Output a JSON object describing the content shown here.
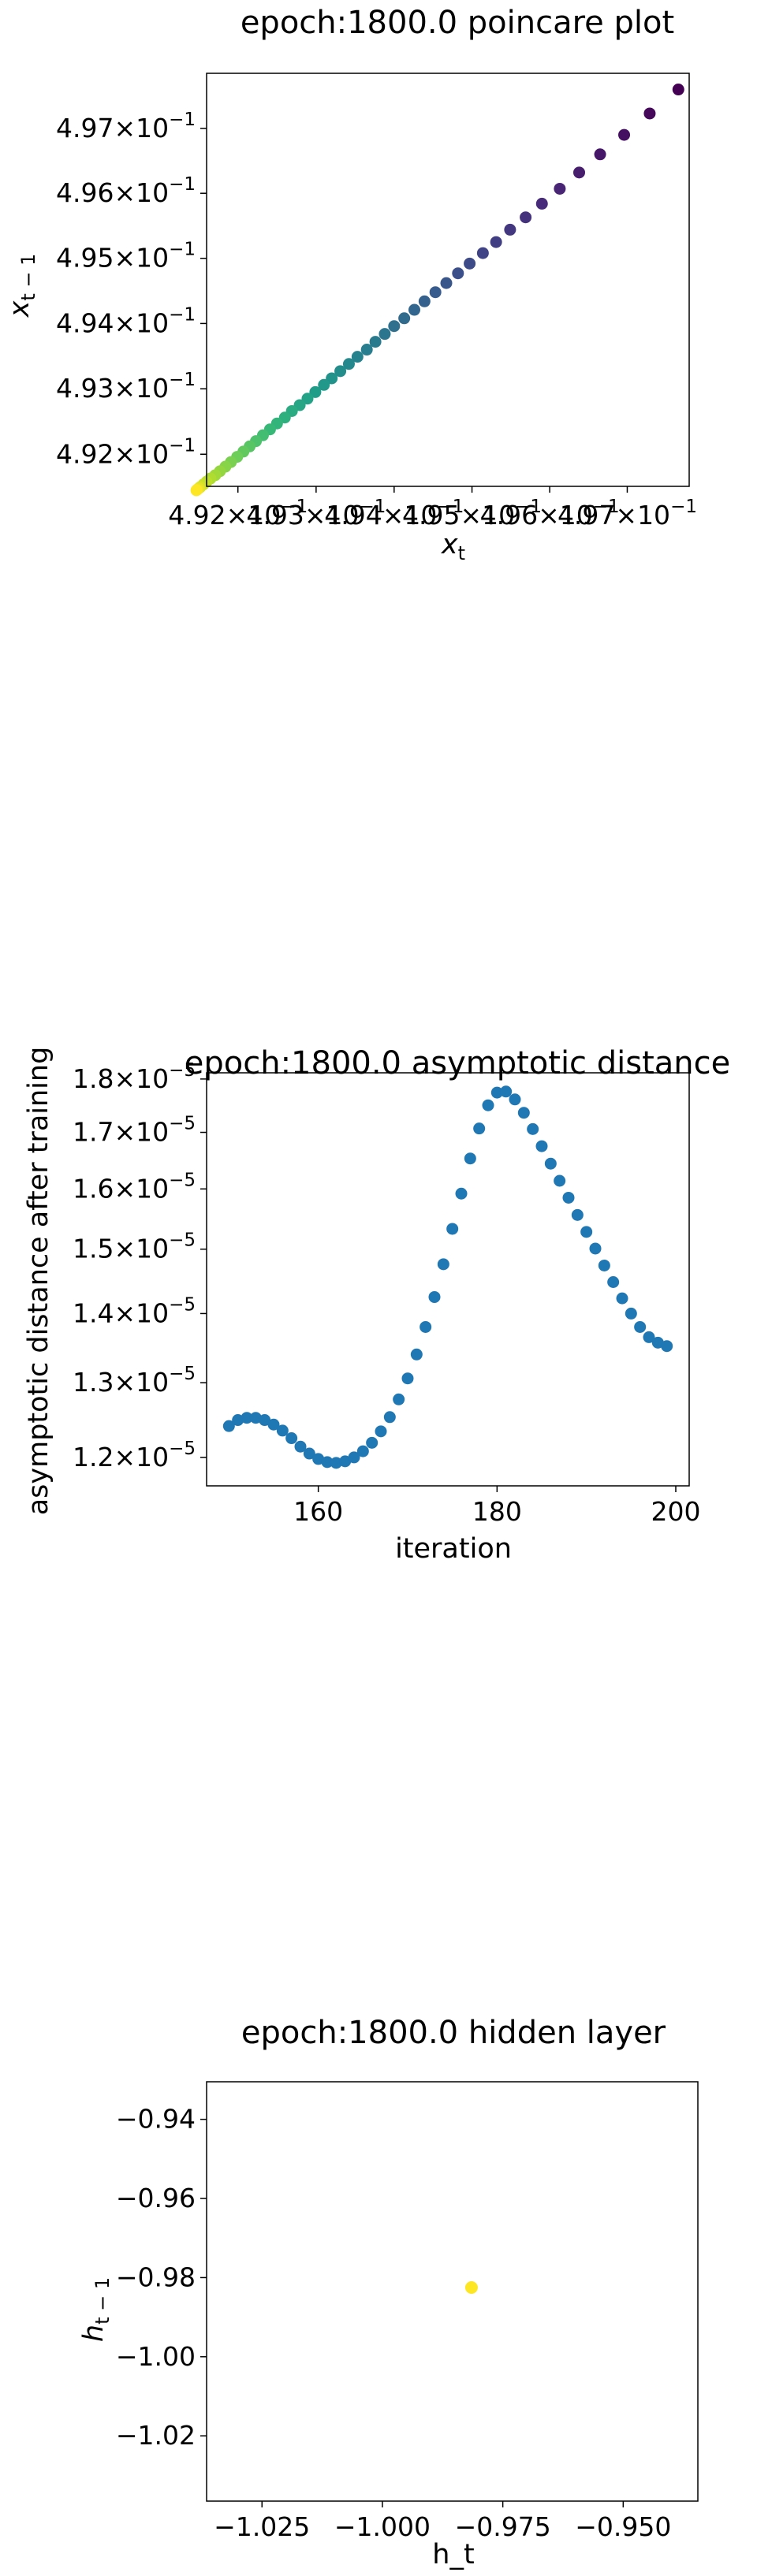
{
  "chart_data": [
    {
      "type": "scatter",
      "title": "epoch:1800.0 poincare plot",
      "xlabel": "x_t",
      "ylabel": "x_{t-1}",
      "xscale": "log",
      "yscale": "log",
      "colormap": "viridis",
      "xlim": [
        0.4916,
        0.4978
      ],
      "ylim": [
        0.49151,
        0.49785
      ],
      "x_ticks": [
        {
          "v": 0.492,
          "m": "4.92",
          "e": "−1"
        },
        {
          "v": 0.493,
          "m": "4.93",
          "e": "−1"
        },
        {
          "v": 0.494,
          "m": "4.94",
          "e": "−1"
        },
        {
          "v": 0.495,
          "m": "4.95",
          "e": "−1"
        },
        {
          "v": 0.496,
          "m": "4.96",
          "e": "−1"
        },
        {
          "v": 0.497,
          "m": "4.97",
          "e": "−1"
        }
      ],
      "y_ticks": [
        {
          "v": 0.492,
          "m": "4.92",
          "e": "−1"
        },
        {
          "v": 0.493,
          "m": "4.93",
          "e": "−1"
        },
        {
          "v": 0.494,
          "m": "4.94",
          "e": "−1"
        },
        {
          "v": 0.495,
          "m": "4.95",
          "e": "−1"
        },
        {
          "v": 0.496,
          "m": "4.96",
          "e": "−1"
        },
        {
          "v": 0.497,
          "m": "4.97",
          "e": "−1"
        }
      ],
      "points": [
        [
          0.49766,
          0.4976
        ],
        [
          0.49729,
          0.49723
        ],
        [
          0.49696,
          0.4969
        ],
        [
          0.49665,
          0.4966
        ],
        [
          0.49638,
          0.49632
        ],
        [
          0.49613,
          0.49607
        ],
        [
          0.4959,
          0.49584
        ],
        [
          0.49569,
          0.49563
        ],
        [
          0.49549,
          0.49544
        ],
        [
          0.49531,
          0.49525
        ],
        [
          0.49514,
          0.49508
        ],
        [
          0.49497,
          0.49492
        ],
        [
          0.49482,
          0.49477
        ],
        [
          0.49467,
          0.49462
        ],
        [
          0.49453,
          0.49448
        ],
        [
          0.49439,
          0.49434
        ],
        [
          0.49426,
          0.49421
        ],
        [
          0.49413,
          0.49408
        ],
        [
          0.494,
          0.49396
        ],
        [
          0.49388,
          0.49384
        ],
        [
          0.49376,
          0.49372
        ],
        [
          0.49365,
          0.4936
        ],
        [
          0.49353,
          0.49349
        ],
        [
          0.49342,
          0.49338
        ],
        [
          0.49331,
          0.49327
        ],
        [
          0.4932,
          0.49316
        ],
        [
          0.4931,
          0.49306
        ],
        [
          0.49299,
          0.49295
        ],
        [
          0.49289,
          0.49285
        ],
        [
          0.49279,
          0.49275
        ],
        [
          0.49269,
          0.49266
        ],
        [
          0.4926,
          0.49256
        ],
        [
          0.4925,
          0.49247
        ],
        [
          0.49241,
          0.49238
        ],
        [
          0.49232,
          0.49229
        ],
        [
          0.49223,
          0.4922
        ],
        [
          0.49215,
          0.49212
        ],
        [
          0.49207,
          0.49204
        ],
        [
          0.49199,
          0.49196
        ],
        [
          0.49191,
          0.49188
        ],
        [
          0.49184,
          0.49181
        ],
        [
          0.49177,
          0.49174
        ],
        [
          0.49171,
          0.49168
        ],
        [
          0.49165,
          0.49163
        ],
        [
          0.4916,
          0.49158
        ],
        [
          0.49156,
          0.49154
        ],
        [
          0.49152,
          0.4915
        ],
        [
          0.4915,
          0.49148
        ],
        [
          0.49148,
          0.49146
        ],
        [
          0.49147,
          0.49145
        ]
      ]
    },
    {
      "type": "scatter",
      "title": "epoch:1800.0 asymptotic distance",
      "xlabel": "iteration",
      "ylabel": "asymptotic distance after training",
      "yscale": "log",
      "color": "#1f77b4",
      "xlim": [
        147.5,
        201.5
      ],
      "ylim": [
        1.164e-05,
        1.812e-05
      ],
      "x_ticks": [
        160,
        180,
        200
      ],
      "y_ticks": [
        {
          "v": 1.2e-05,
          "m": "1.2",
          "e": "−5"
        },
        {
          "v": 1.3e-05,
          "m": "1.3",
          "e": "−5"
        },
        {
          "v": 1.4e-05,
          "m": "1.4",
          "e": "−5"
        },
        {
          "v": 1.5e-05,
          "m": "1.5",
          "e": "−5"
        },
        {
          "v": 1.6e-05,
          "m": "1.6",
          "e": "−5"
        },
        {
          "v": 1.7e-05,
          "m": "1.7",
          "e": "−5"
        },
        {
          "v": 1.8e-05,
          "m": "1.8",
          "e": "−5"
        }
      ],
      "x": [
        150,
        151,
        152,
        153,
        154,
        155,
        156,
        157,
        158,
        159,
        160,
        161,
        162,
        163,
        164,
        165,
        166,
        167,
        168,
        169,
        170,
        171,
        172,
        173,
        174,
        175,
        176,
        177,
        178,
        179,
        180,
        181,
        182,
        183,
        184,
        185,
        186,
        187,
        188,
        189,
        190,
        191,
        192,
        193,
        194,
        195,
        196,
        197,
        198,
        199
      ],
      "y": [
        1.241e-05,
        1.249e-05,
        1.252e-05,
        1.252e-05,
        1.249e-05,
        1.243e-05,
        1.235e-05,
        1.225e-05,
        1.214e-05,
        1.205e-05,
        1.198e-05,
        1.194e-05,
        1.193e-05,
        1.195e-05,
        1.2e-05,
        1.208e-05,
        1.219e-05,
        1.234e-05,
        1.253e-05,
        1.277e-05,
        1.306e-05,
        1.34e-05,
        1.38e-05,
        1.425e-05,
        1.476e-05,
        1.533e-05,
        1.592e-05,
        1.653e-05,
        1.707e-05,
        1.75e-05,
        1.774e-05,
        1.776e-05,
        1.761e-05,
        1.736e-05,
        1.706e-05,
        1.675e-05,
        1.644e-05,
        1.614e-05,
        1.585e-05,
        1.556e-05,
        1.528e-05,
        1.501e-05,
        1.474e-05,
        1.448e-05,
        1.423e-05,
        1.4e-05,
        1.38e-05,
        1.365e-05,
        1.357e-05,
        1.352e-05
      ]
    },
    {
      "type": "scatter",
      "title": "epoch:1800.0 hidden layer",
      "xlabel": "h_t",
      "ylabel": "h_{t-1}",
      "color": "#fde725",
      "xlim": [
        -1.0365,
        -0.9345
      ],
      "ylim": [
        -1.0365,
        -0.9305
      ],
      "x_ticks": [
        {
          "v": -1.025,
          "l": "−1.025"
        },
        {
          "v": -1.0,
          "l": "−1.000"
        },
        {
          "v": -0.975,
          "l": "−0.975"
        },
        {
          "v": -0.95,
          "l": "−0.950"
        }
      ],
      "y_ticks": [
        {
          "v": -0.94,
          "l": "−0.94"
        },
        {
          "v": -0.96,
          "l": "−0.96"
        },
        {
          "v": -0.98,
          "l": "−0.98"
        },
        {
          "v": -1.0,
          "l": "−1.00"
        },
        {
          "v": -1.02,
          "l": "−1.02"
        }
      ],
      "points": [
        [
          -0.9815,
          -0.9825
        ]
      ]
    }
  ]
}
